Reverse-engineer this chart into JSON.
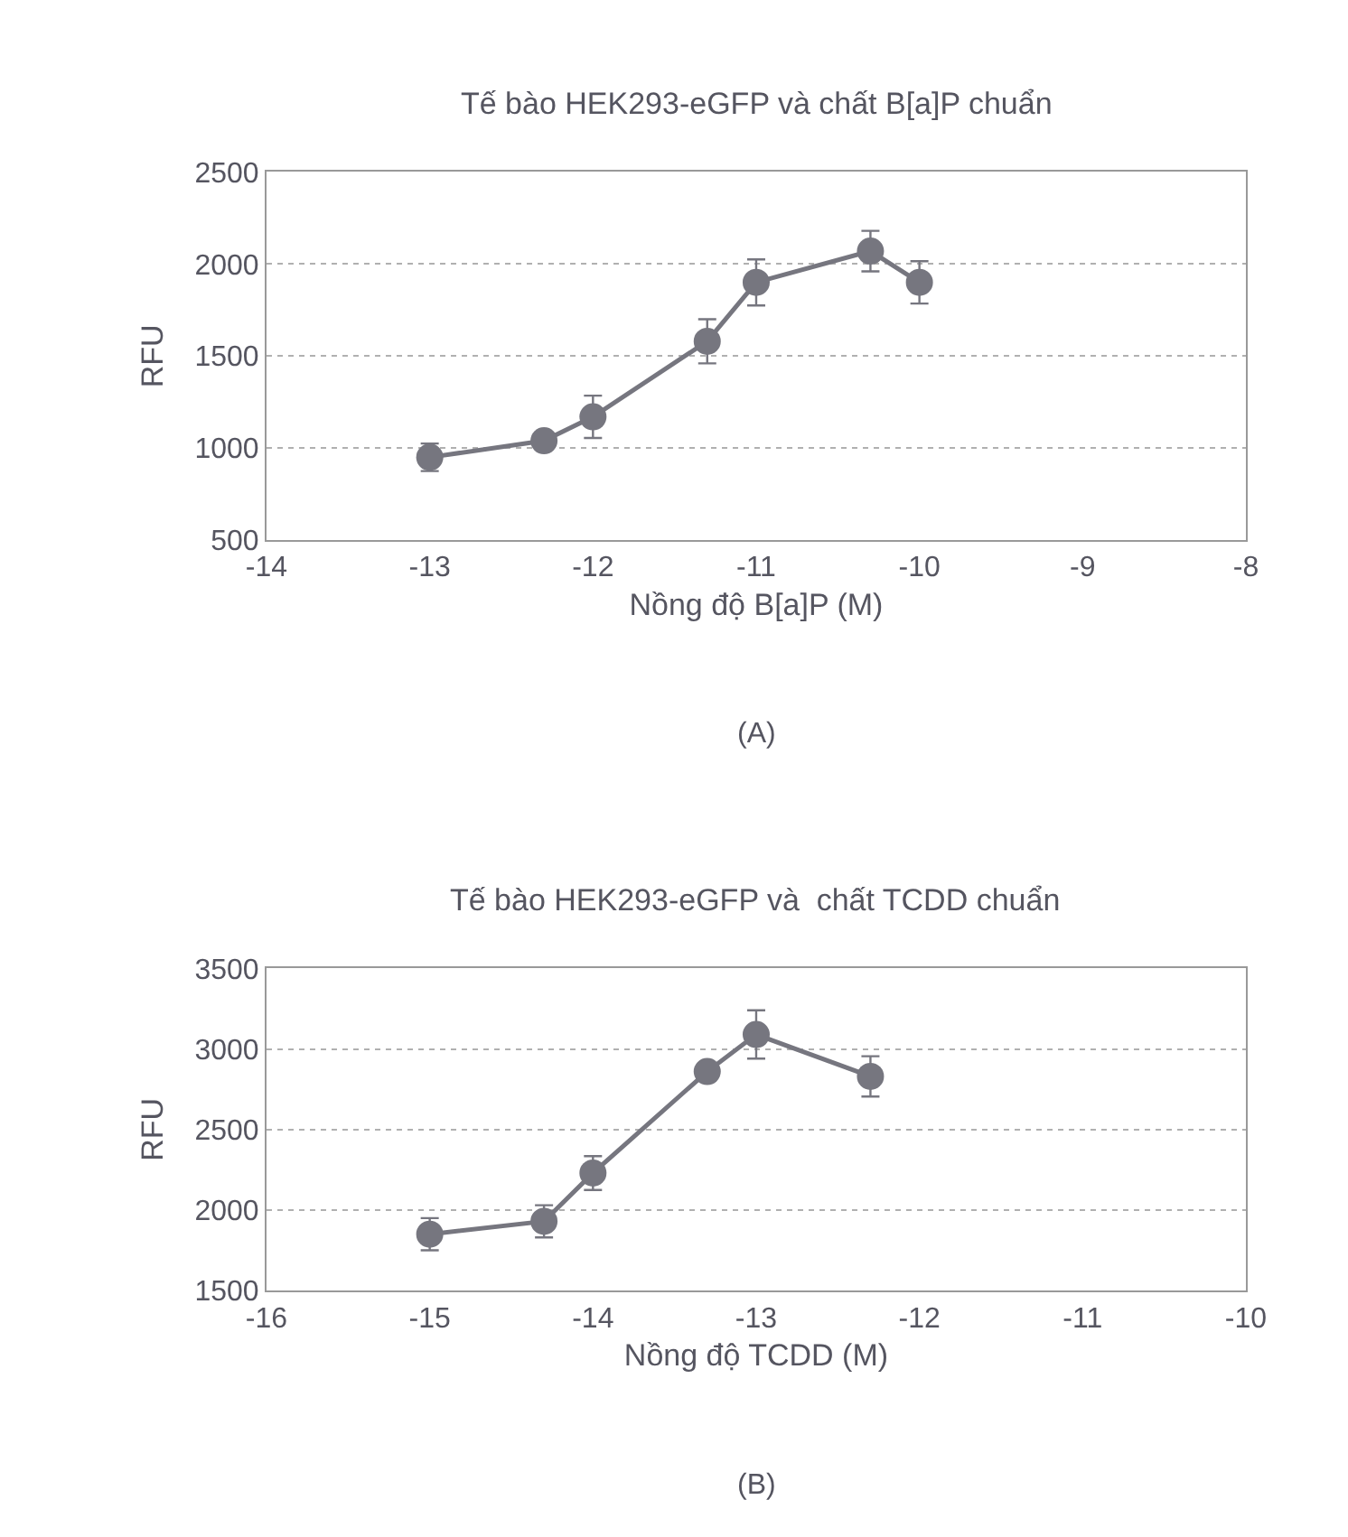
{
  "chart_data": [
    {
      "type": "line",
      "title": "Tế bào HEK293-eGFP và chất B[a]P chuẩn",
      "xlabel": "Nồng độ B[a]P (M)",
      "ylabel": "RFU",
      "x": [
        -13,
        -12.3,
        -12,
        -11.3,
        -11,
        -10.3,
        -10
      ],
      "series": [
        {
          "color": "#76767f",
          "values": [
            950,
            1040,
            1170,
            1580,
            1900,
            2070,
            1900
          ],
          "errors": [
            75,
            null,
            115,
            120,
            125,
            110,
            115
          ]
        }
      ],
      "xlim": [
        -14,
        -8
      ],
      "xticks": [
        -14,
        -13,
        -12,
        -11,
        -10,
        -9,
        -8
      ],
      "ylim": [
        500,
        2500
      ],
      "yticks": [
        500,
        1000,
        1500,
        2000,
        2500
      ],
      "grid": "y",
      "marker": "circle",
      "line_style": "solid",
      "annotations": [
        "(A)"
      ]
    },
    {
      "type": "line",
      "title": "Tế bào HEK293-eGFP và  chất TCDD chuẩn",
      "xlabel": "Nồng độ TCDD (M)",
      "ylabel": "RFU",
      "x": [
        -15,
        -14.3,
        -14,
        -13.3,
        -13,
        -12.3
      ],
      "series": [
        {
          "color": "#76767f",
          "values": [
            1850,
            1930,
            2230,
            2860,
            3090,
            2830
          ],
          "errors": [
            100,
            100,
            105,
            null,
            150,
            125
          ]
        }
      ],
      "xlim": [
        -16,
        -10
      ],
      "xticks": [
        -16,
        -15,
        -14,
        -13,
        -12,
        -11,
        -10
      ],
      "ylim": [
        1500,
        3500
      ],
      "yticks": [
        1500,
        2000,
        2500,
        3000,
        3500
      ],
      "grid": "y",
      "marker": "circle",
      "line_style": "solid",
      "annotations": [
        "(B)"
      ]
    }
  ]
}
